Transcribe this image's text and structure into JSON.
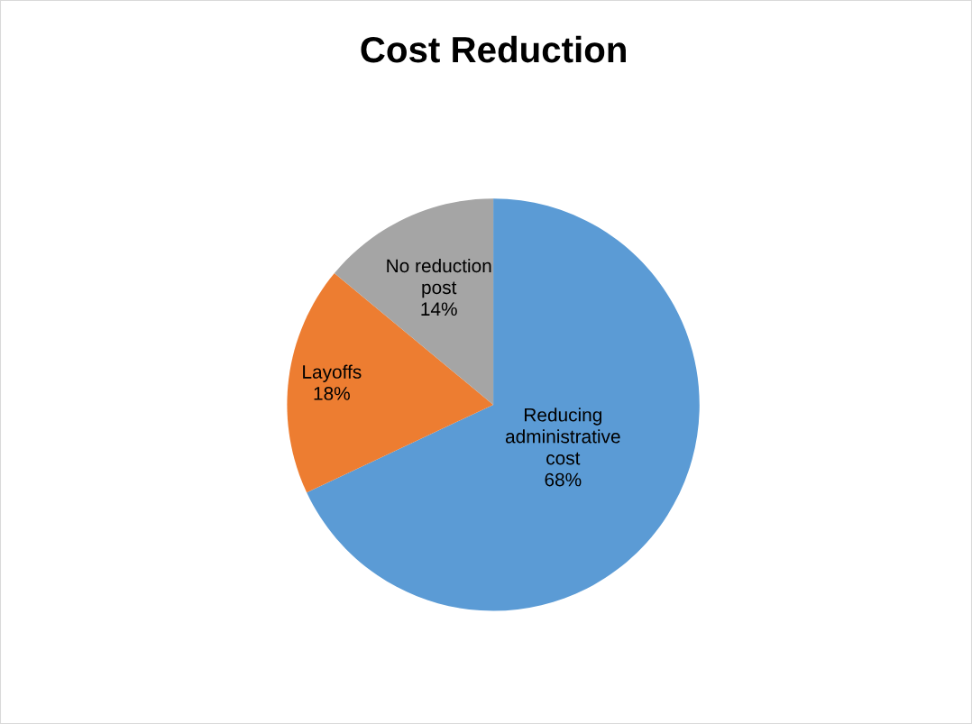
{
  "chart_data": {
    "type": "pie",
    "title": "Cost Reduction",
    "categories": [
      "Reducing\nadministrative\ncost",
      "Layoffs",
      "No reduction\npost"
    ],
    "values": [
      68,
      18,
      14
    ],
    "colors": [
      "#5b9bd5",
      "#ed7d31",
      "#a5a5a5"
    ],
    "value_labels": [
      "68%",
      "18%",
      "14%"
    ],
    "legend": false
  }
}
